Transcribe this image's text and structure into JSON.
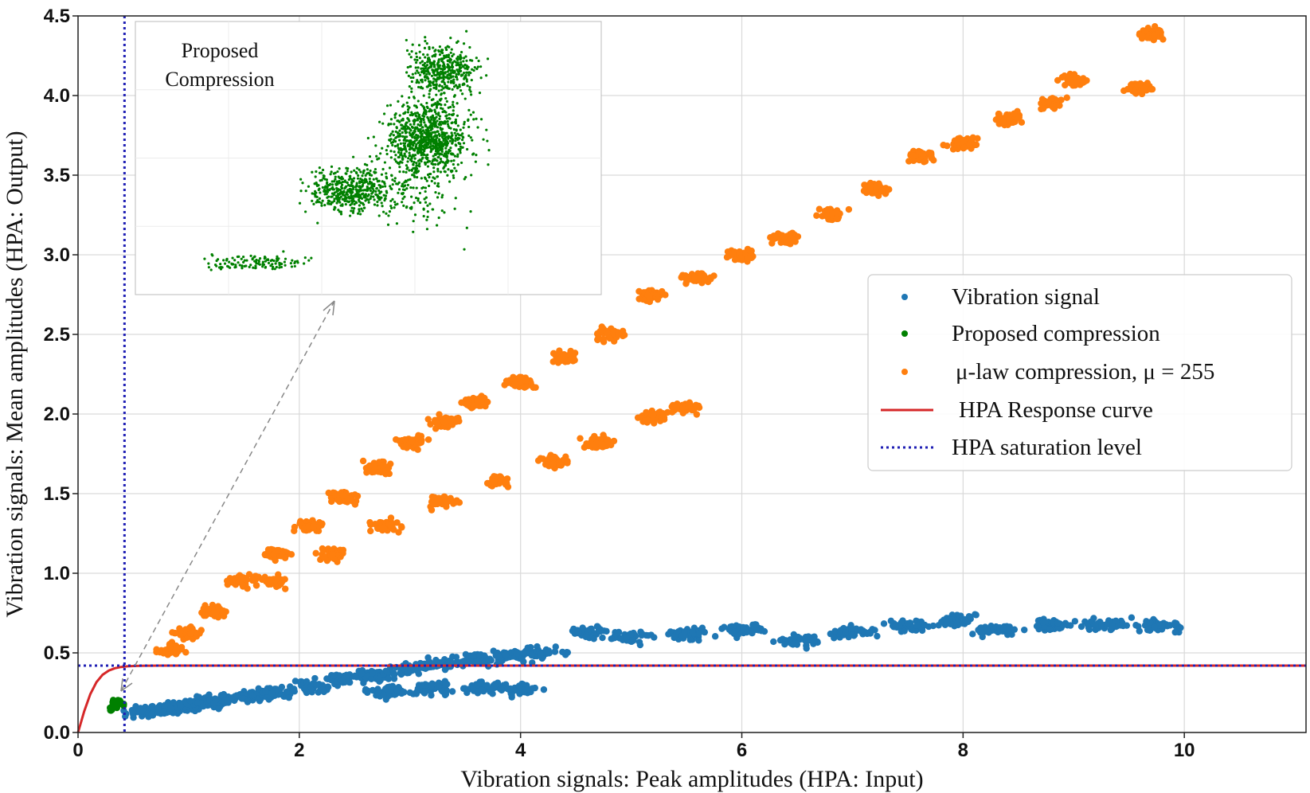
{
  "chart_data": {
    "type": "scatter",
    "xlabel": "Vibration signals: Peak amplitudes (HPA: Input)",
    "ylabel": "Vibration signals: Mean amplitudes (HPA: Output)",
    "xlim": [
      0,
      11.1
    ],
    "ylim": [
      0,
      4.5
    ],
    "xticks": [
      "0",
      "2",
      "4",
      "6",
      "8",
      "10"
    ],
    "yticks": [
      "0.0",
      "0.5",
      "1.0",
      "1.5",
      "2.0",
      "2.5",
      "3.0",
      "3.5",
      "4.0",
      "4.5"
    ],
    "grid": true,
    "legend_position": "center-right",
    "saturation_level": {
      "name": "HPA saturation level",
      "x": 0.42,
      "y": 0.42,
      "color": "#1f1fb4"
    },
    "response_curve": {
      "name": "HPA Response curve",
      "color": "#d62728",
      "saturation": 0.42
    },
    "series": [
      {
        "name": "Vibration signal",
        "color": "#1f77b4",
        "points": [
          [
            0.6,
            0.13
          ],
          [
            0.8,
            0.15
          ],
          [
            1.0,
            0.17
          ],
          [
            1.2,
            0.19
          ],
          [
            1.5,
            0.22
          ],
          [
            1.8,
            0.25
          ],
          [
            2.1,
            0.29
          ],
          [
            2.4,
            0.33
          ],
          [
            2.7,
            0.36
          ],
          [
            3.0,
            0.4
          ],
          [
            3.3,
            0.43
          ],
          [
            3.6,
            0.46
          ],
          [
            3.9,
            0.48
          ],
          [
            4.2,
            0.5
          ],
          [
            2.8,
            0.26
          ],
          [
            3.2,
            0.28
          ],
          [
            3.7,
            0.28
          ],
          [
            4.0,
            0.27
          ],
          [
            4.6,
            0.63
          ],
          [
            5.0,
            0.6
          ],
          [
            5.5,
            0.62
          ],
          [
            6.0,
            0.64
          ],
          [
            6.5,
            0.58
          ],
          [
            7.0,
            0.63
          ],
          [
            7.5,
            0.67
          ],
          [
            7.9,
            0.7
          ],
          [
            8.3,
            0.64
          ],
          [
            8.8,
            0.68
          ],
          [
            9.3,
            0.68
          ],
          [
            9.8,
            0.67
          ]
        ]
      },
      {
        "name": "Proposed compression",
        "color": "#008000",
        "points": [
          [
            0.3,
            0.15
          ],
          [
            0.32,
            0.19
          ],
          [
            0.35,
            0.17
          ],
          [
            0.37,
            0.2
          ],
          [
            0.4,
            0.18
          ]
        ]
      },
      {
        "name": "μ-law compression,  μ = 255",
        "color": "#ff7f0e",
        "points": [
          [
            0.85,
            0.52
          ],
          [
            1.0,
            0.62
          ],
          [
            1.2,
            0.76
          ],
          [
            1.5,
            0.95
          ],
          [
            1.8,
            1.12
          ],
          [
            2.1,
            1.3
          ],
          [
            2.4,
            1.48
          ],
          [
            2.7,
            1.66
          ],
          [
            3.0,
            1.82
          ],
          [
            3.3,
            1.95
          ],
          [
            3.6,
            2.07
          ],
          [
            4.0,
            2.2
          ],
          [
            4.4,
            2.36
          ],
          [
            4.8,
            2.5
          ],
          [
            5.2,
            2.75
          ],
          [
            5.6,
            2.85
          ],
          [
            6.0,
            3.0
          ],
          [
            6.4,
            3.1
          ],
          [
            6.8,
            3.25
          ],
          [
            7.2,
            3.42
          ],
          [
            7.6,
            3.62
          ],
          [
            8.0,
            3.7
          ],
          [
            8.4,
            3.85
          ],
          [
            8.8,
            3.95
          ],
          [
            9.0,
            4.1
          ],
          [
            9.6,
            4.05
          ],
          [
            9.7,
            4.38
          ],
          [
            1.8,
            0.95
          ],
          [
            2.3,
            1.12
          ],
          [
            2.8,
            1.3
          ],
          [
            3.3,
            1.45
          ],
          [
            3.8,
            1.58
          ],
          [
            4.3,
            1.7
          ],
          [
            4.7,
            1.82
          ],
          [
            5.2,
            1.98
          ],
          [
            5.5,
            2.04
          ]
        ]
      }
    ],
    "inset": {
      "title_line1": "Proposed",
      "title_line2": "Compression",
      "color": "#008000"
    }
  }
}
